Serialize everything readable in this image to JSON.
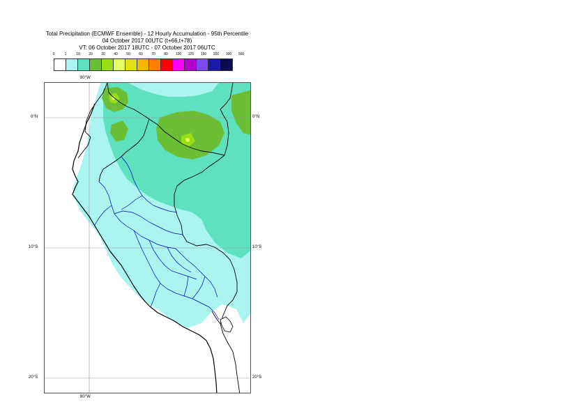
{
  "title": {
    "line1": "Total Precipitation (ECMWF Ensemble) - 12 Hourly Accumulation - 95th Percentile",
    "line2": "04 October 2017 00UTC (t+66,t+78)",
    "line3": "VT: 06 October 2017 18UTC - 07 October 2017 06UTC"
  },
  "legend": {
    "ticks": [
      "0",
      "1",
      "10",
      "20",
      "30",
      "40",
      "50",
      "60",
      "70",
      "80",
      "100",
      "125",
      "150",
      "200",
      "300",
      "500"
    ],
    "colors": [
      "#ffffff",
      "#aaf5f0",
      "#5fe0bf",
      "#6cbf34",
      "#99dd17",
      "#e4ff66",
      "#e0e01c",
      "#f5b500",
      "#ff7f00",
      "#ff0000",
      "#ff00ff",
      "#b300c8",
      "#7b4bf0",
      "#1a1aa3",
      "#0b0b52"
    ]
  },
  "grid": {
    "lon_top": "80°W",
    "lon_bottom": "80°W",
    "lat_0_left": "0°N",
    "lat_0_right": "0°N",
    "lat_10_left": "10°S",
    "lat_10_right": "10°S",
    "lat_20_left": "20°S",
    "lat_20_right": "20°S"
  }
}
